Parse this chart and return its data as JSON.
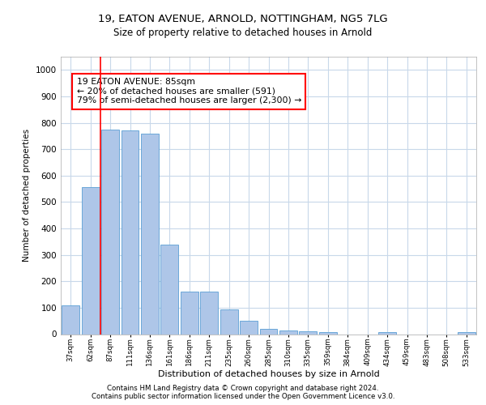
{
  "title1": "19, EATON AVENUE, ARNOLD, NOTTINGHAM, NG5 7LG",
  "title2": "Size of property relative to detached houses in Arnold",
  "xlabel": "Distribution of detached houses by size in Arnold",
  "ylabel": "Number of detached properties",
  "footer1": "Contains HM Land Registry data © Crown copyright and database right 2024.",
  "footer2": "Contains public sector information licensed under the Open Government Licence v3.0.",
  "annotation_title": "19 EATON AVENUE: 85sqm",
  "annotation_line1": "← 20% of detached houses are smaller (591)",
  "annotation_line2": "79% of semi-detached houses are larger (2,300) →",
  "bar_color": "#aec6e8",
  "bar_edge_color": "#5a9fd4",
  "categories": [
    "37sqm",
    "62sqm",
    "87sqm",
    "111sqm",
    "136sqm",
    "161sqm",
    "186sqm",
    "211sqm",
    "235sqm",
    "260sqm",
    "285sqm",
    "310sqm",
    "335sqm",
    "359sqm",
    "384sqm",
    "409sqm",
    "434sqm",
    "459sqm",
    "483sqm",
    "508sqm",
    "533sqm"
  ],
  "values": [
    110,
    555,
    775,
    770,
    760,
    340,
    160,
    160,
    95,
    50,
    20,
    15,
    12,
    8,
    0,
    0,
    8,
    0,
    0,
    0,
    8
  ],
  "ylim": [
    0,
    1050
  ],
  "yticks": [
    0,
    100,
    200,
    300,
    400,
    500,
    600,
    700,
    800,
    900,
    1000
  ],
  "red_line_x": 1.5,
  "background_color": "#ffffff",
  "grid_color": "#c8d8ea"
}
